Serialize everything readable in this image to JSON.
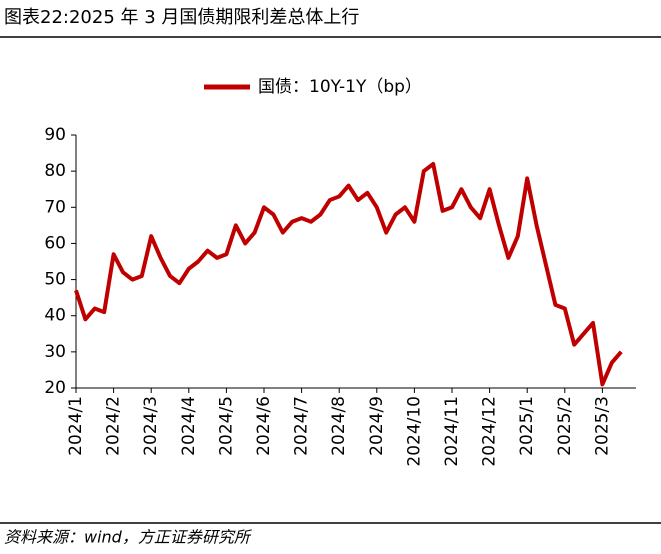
{
  "chart_data": {
    "type": "line",
    "title": "图表22:2025 年 3 月国债期限利差总体上行",
    "source": "资料来源：wind，方正证券研究所",
    "categories": [
      "2024/1",
      null,
      null,
      null,
      "2024/2",
      null,
      null,
      null,
      "2024/3",
      null,
      null,
      null,
      "2024/4",
      null,
      null,
      null,
      "2024/5",
      null,
      null,
      null,
      "2024/6",
      null,
      null,
      null,
      "2024/7",
      null,
      null,
      null,
      "2024/8",
      null,
      null,
      null,
      "2024/9",
      null,
      null,
      null,
      "2024/10",
      null,
      null,
      null,
      "2024/11",
      null,
      null,
      null,
      "2024/12",
      null,
      null,
      null,
      "2025/1",
      null,
      null,
      null,
      "2025/2",
      null,
      null,
      null,
      "2025/3",
      null,
      null
    ],
    "series": [
      {
        "name": "国债：10Y-1Y（bp）",
        "color": "#c00000",
        "values": [
          47,
          39,
          42,
          41,
          57,
          52,
          50,
          51,
          62,
          56,
          51,
          49,
          53,
          55,
          58,
          56,
          57,
          65,
          60,
          63,
          70,
          68,
          63,
          66,
          67,
          66,
          68,
          72,
          73,
          76,
          72,
          74,
          70,
          63,
          68,
          70,
          66,
          80,
          82,
          69,
          70,
          75,
          70,
          67,
          75,
          65,
          56,
          62,
          78,
          65,
          54,
          43,
          42,
          32,
          35,
          38,
          21,
          27,
          30
        ]
      }
    ],
    "ylim": [
      20,
      90
    ],
    "yticks": [
      20,
      30,
      40,
      50,
      60,
      70,
      80,
      90
    ],
    "legend": "top"
  }
}
